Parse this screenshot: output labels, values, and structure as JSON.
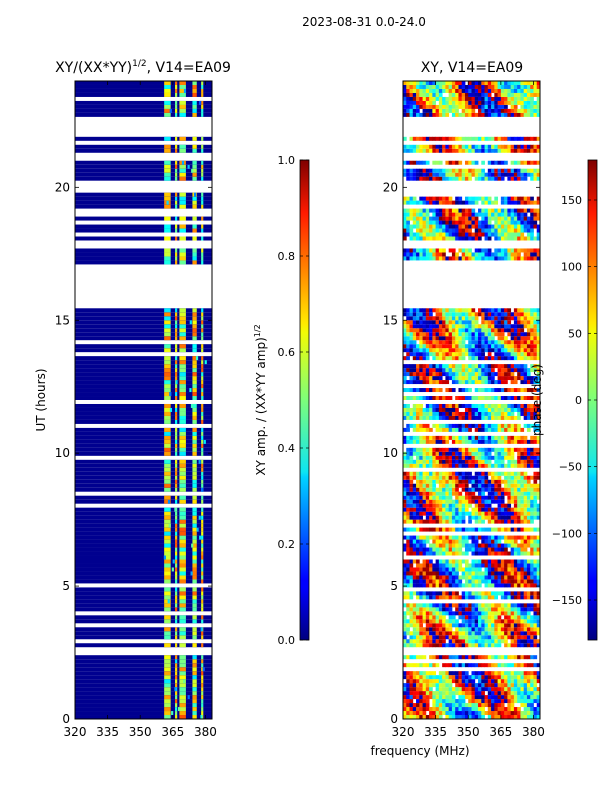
{
  "figure_title": "2023-08-31 0.0-24.0",
  "shared_xlabel": "frequency (MHz)",
  "chart_data": [
    {
      "type": "heatmap",
      "title_main": "XY/(XX*YY)",
      "title_sup": "1/2",
      "title_tail": ", V14=EA09",
      "ylabel": "UT (hours)",
      "xlim": [
        320,
        383
      ],
      "ylim": [
        0,
        24
      ],
      "xticks": [
        320,
        335,
        350,
        365,
        380
      ],
      "yticks": [
        0,
        5,
        10,
        15,
        20
      ],
      "colorbar": {
        "label_main": "XY amp. / (XX*YY amp)",
        "label_sup": "1/2",
        "range": [
          0.0,
          1.0
        ],
        "ticks": [
          "0.0",
          "0.2",
          "0.4",
          "0.6",
          "0.8",
          "1.0"
        ],
        "tick_values": [
          0.0,
          0.2,
          0.4,
          0.6,
          0.8,
          1.0
        ]
      },
      "missing_time_ranges_hours": [
        [
          15.3,
          17.0
        ],
        [
          17.6,
          18.0
        ],
        [
          19.7,
          20.1
        ],
        [
          20.9,
          21.2
        ],
        [
          21.5,
          21.7
        ],
        [
          21.8,
          22.1
        ],
        [
          22.2,
          22.6
        ],
        [
          2.4,
          2.6
        ]
      ],
      "bright_frequency_bands_mhz": [
        [
          361,
          364
        ],
        [
          366,
          367
        ],
        [
          368,
          371
        ],
        [
          374,
          376
        ],
        [
          378,
          379
        ]
      ]
    },
    {
      "type": "heatmap",
      "title": "XY, V14=EA09",
      "ylabel": "",
      "xlim": [
        320,
        383
      ],
      "ylim": [
        0,
        24
      ],
      "xticks": [
        320,
        335,
        350,
        365,
        380
      ],
      "yticks": [
        0,
        5,
        10,
        15,
        20
      ],
      "colorbar": {
        "label": "phase (deg)",
        "range": [
          -180,
          180
        ],
        "ticks": [
          "−150",
          "−100",
          "−50",
          "0",
          "50",
          "100",
          "150"
        ],
        "tick_values": [
          -150,
          -100,
          -50,
          0,
          50,
          100,
          150
        ]
      },
      "missing_time_ranges_hours": [
        [
          15.3,
          17.0
        ],
        [
          17.6,
          18.0
        ],
        [
          19.7,
          20.1
        ],
        [
          20.9,
          21.2
        ],
        [
          21.5,
          21.7
        ],
        [
          21.8,
          22.1
        ],
        [
          22.2,
          22.6
        ],
        [
          2.4,
          2.6
        ]
      ]
    }
  ]
}
